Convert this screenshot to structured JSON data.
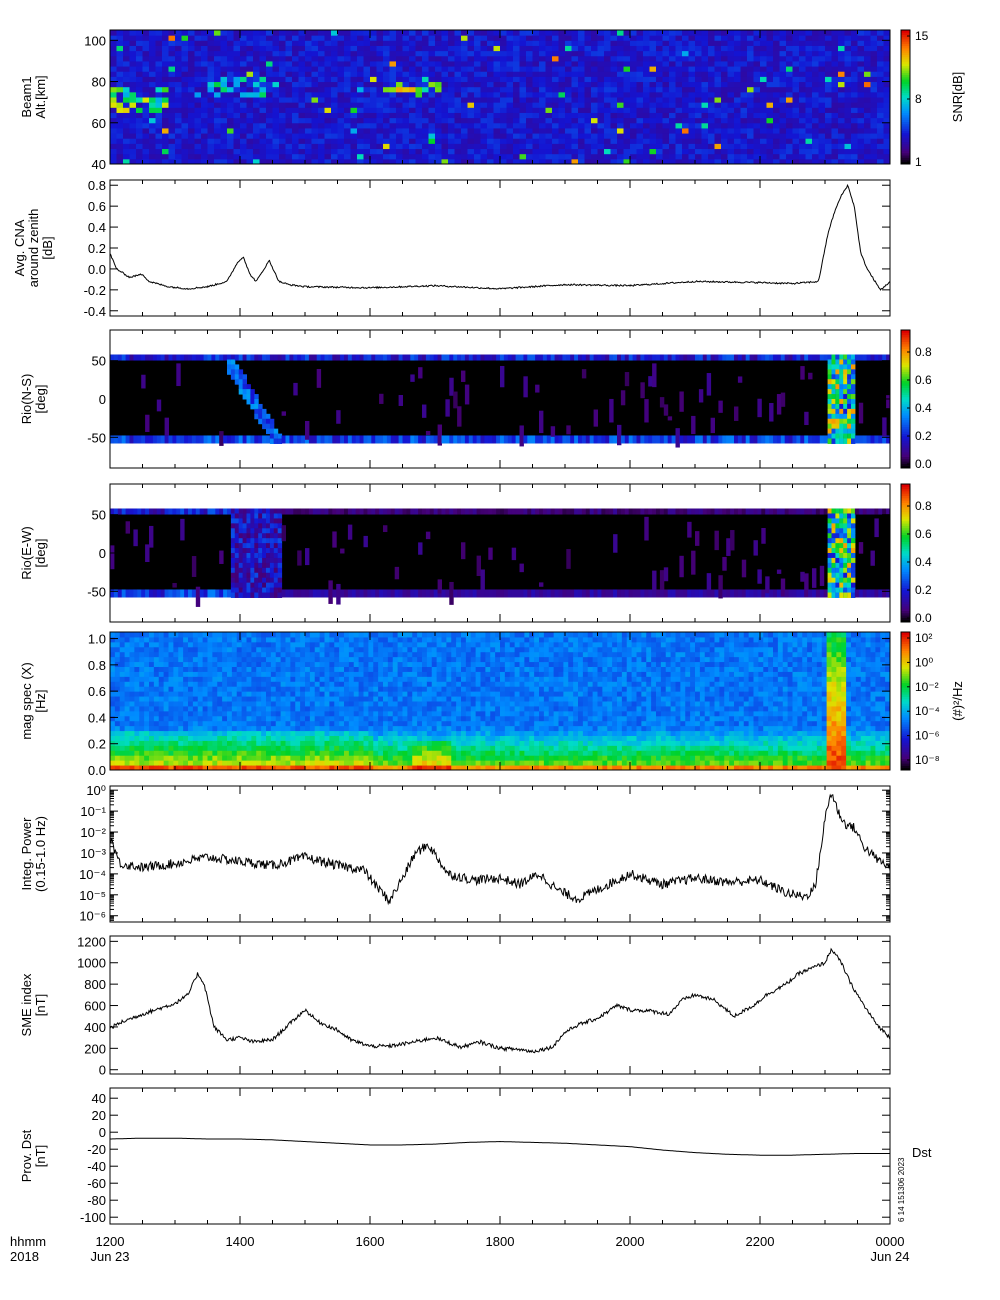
{
  "time_axis": {
    "header": [
      "hhmm",
      "2018"
    ],
    "ticks": [
      {
        "hours": 0,
        "label": "1200",
        "sub": "Jun 23"
      },
      {
        "hours": 2,
        "label": "1400",
        "sub": ""
      },
      {
        "hours": 4,
        "label": "1600",
        "sub": ""
      },
      {
        "hours": 6,
        "label": "1800",
        "sub": ""
      },
      {
        "hours": 8,
        "label": "2000",
        "sub": ""
      },
      {
        "hours": 10,
        "label": "2200",
        "sub": ""
      },
      {
        "hours": 12,
        "label": "0000",
        "sub": "Jun 24"
      }
    ]
  },
  "side_text": {
    "dst_label": "Dst",
    "stamp": "6 14 151306 2023"
  },
  "chart_data": [
    {
      "id": "beam1",
      "type": "heatmap",
      "ylabel": [
        "Beam1",
        "Alt.[km]"
      ],
      "yticks": [
        40,
        60,
        80,
        100
      ],
      "ylim": [
        40,
        105
      ],
      "colorbar": {
        "label": "SNR[dB]",
        "ticks": [
          "15",
          "8",
          "1"
        ],
        "range": [
          1,
          15
        ]
      },
      "features": [
        {
          "t": [
            0.0,
            0.8
          ],
          "alt": [
            66,
            78
          ],
          "snr": 11
        },
        {
          "t": [
            1.45,
            2.35
          ],
          "alt": [
            72,
            82
          ],
          "snr": 10
        },
        {
          "t": [
            4.15,
            5.05
          ],
          "alt": [
            75,
            79
          ],
          "snr": 12
        },
        {
          "t": [
            11.1,
            11.75
          ],
          "alt": [
            77,
            81
          ],
          "snr": 13
        }
      ]
    },
    {
      "id": "cna",
      "type": "line",
      "ylabel": [
        "Avg. CNA",
        "around zenith",
        "[dB]"
      ],
      "yticks": [
        "0.8",
        "0.6",
        "0.4",
        "0.2",
        "0.0",
        "-0.2",
        "-0.4"
      ],
      "yticks_num": [
        0.8,
        0.6,
        0.4,
        0.2,
        0.0,
        -0.2,
        -0.4
      ],
      "ylim": [
        -0.45,
        0.85
      ],
      "x": [
        0,
        0.1,
        0.3,
        0.5,
        0.6,
        0.9,
        1.2,
        1.5,
        1.8,
        1.95,
        2.05,
        2.15,
        2.25,
        2.45,
        2.6,
        2.75,
        3,
        4,
        5,
        6,
        7,
        8,
        9,
        10,
        10.5,
        10.9,
        11.05,
        11.15,
        11.25,
        11.35,
        11.45,
        11.55,
        11.65,
        11.75,
        11.85,
        11.95,
        12
      ],
      "y": [
        0.15,
        0.0,
        -0.08,
        -0.05,
        -0.12,
        -0.17,
        -0.19,
        -0.17,
        -0.12,
        0.05,
        0.12,
        -0.05,
        -0.12,
        0.08,
        -0.12,
        -0.15,
        -0.17,
        -0.18,
        -0.16,
        -0.19,
        -0.15,
        -0.16,
        -0.12,
        -0.13,
        -0.14,
        -0.12,
        0.35,
        0.55,
        0.7,
        0.8,
        0.6,
        0.15,
        0.0,
        -0.1,
        -0.2,
        -0.15,
        -0.12
      ]
    },
    {
      "id": "rio_ns",
      "type": "heatmap",
      "ylabel": [
        "Rio(N-S)",
        "[deg]"
      ],
      "yticks": [
        "50",
        "0",
        "-50"
      ],
      "yticks_num": [
        50,
        0,
        -50
      ],
      "ylim": [
        -90,
        90
      ],
      "colorbar": {
        "ticks": [
          "0.8",
          "0.6",
          "0.4",
          "0.2",
          "0.0"
        ],
        "range": [
          0,
          0.9
        ]
      },
      "features": [
        {
          "t": [
            11.0,
            11.45
          ],
          "value": 0.85
        },
        {
          "t": [
            1.75,
            2.6
          ],
          "value": 0.35,
          "diagonal": true
        }
      ]
    },
    {
      "id": "rio_ew",
      "type": "heatmap",
      "ylabel": [
        "Rio(E-W)",
        "[deg]"
      ],
      "yticks": [
        "50",
        "0",
        "-50"
      ],
      "yticks_num": [
        50,
        0,
        -50
      ],
      "ylim": [
        -90,
        90
      ],
      "colorbar": {
        "ticks": [
          "0.8",
          "0.6",
          "0.4",
          "0.2",
          "0.0"
        ],
        "range": [
          0,
          0.9
        ]
      },
      "features": [
        {
          "t": [
            11.0,
            11.45
          ],
          "value": 0.85
        },
        {
          "t": [
            1.8,
            2.6
          ],
          "value": 0.3
        }
      ]
    },
    {
      "id": "mag_spec",
      "type": "heatmap",
      "ylabel": [
        "mag spec (X)",
        "[Hz]"
      ],
      "yticks": [
        "1.0",
        "0.8",
        "0.6",
        "0.4",
        "0.2",
        "0.0"
      ],
      "yticks_num": [
        1.0,
        0.8,
        0.6,
        0.4,
        0.2,
        0.0
      ],
      "ylim": [
        0,
        1.05
      ],
      "colorbar": {
        "label": "(#)²/Hz",
        "ticks": [
          "10²",
          "10⁰",
          "10⁻²",
          "10⁻⁴",
          "10⁻⁶",
          "10⁻⁸"
        ]
      },
      "features": [
        {
          "t": [
            11.0,
            11.25
          ],
          "freq": [
            0,
            1.0
          ],
          "level": "high"
        }
      ]
    },
    {
      "id": "integ_power",
      "type": "line",
      "ylabel": [
        "Integ. Power",
        "(0.15-1.0 Hz)"
      ],
      "yscale": "log",
      "yticks": [
        "10⁰",
        "10⁻¹",
        "10⁻²",
        "10⁻³",
        "10⁻⁴",
        "10⁻⁵",
        "10⁻⁶"
      ],
      "yticks_exp": [
        0,
        -1,
        -2,
        -3,
        -4,
        -5,
        -6
      ],
      "ylim_exp": [
        -6.3,
        0.2
      ],
      "x": [
        0,
        0.15,
        0.5,
        1,
        1.5,
        2,
        2.5,
        3,
        3.5,
        3.9,
        4.1,
        4.3,
        4.5,
        4.7,
        4.9,
        5.2,
        5.6,
        6,
        6.3,
        6.6,
        6.9,
        7.2,
        7.6,
        8,
        8.5,
        9,
        9.5,
        10,
        10.4,
        10.7,
        10.85,
        10.95,
        11.02,
        11.1,
        11.2,
        11.3,
        11.45,
        11.6,
        11.8,
        12
      ],
      "y_exp": [
        -2.2,
        -3.5,
        -3.7,
        -3.5,
        -3.2,
        -3.4,
        -3.6,
        -3.2,
        -3.6,
        -3.8,
        -4.6,
        -5.3,
        -4.2,
        -3.0,
        -2.6,
        -4.0,
        -4.3,
        -4.2,
        -4.5,
        -4.0,
        -4.8,
        -5.2,
        -4.6,
        -4.0,
        -4.5,
        -4.2,
        -4.4,
        -4.3,
        -4.9,
        -5.1,
        -4.6,
        -2.5,
        -1.0,
        -0.1,
        -1.0,
        -1.6,
        -1.8,
        -2.7,
        -3.3,
        -3.7
      ]
    },
    {
      "id": "sme",
      "type": "line",
      "ylabel": [
        "SME index",
        "[nT]"
      ],
      "yticks": [
        "1200",
        "1000",
        "800",
        "600",
        "400",
        "200",
        "0"
      ],
      "yticks_num": [
        1200,
        1000,
        800,
        600,
        400,
        200,
        0
      ],
      "ylim": [
        -40,
        1250
      ],
      "x": [
        0,
        0.2,
        0.5,
        0.8,
        1.0,
        1.2,
        1.35,
        1.45,
        1.6,
        1.8,
        2.0,
        2.2,
        2.5,
        2.8,
        3.0,
        3.2,
        3.5,
        3.7,
        4.0,
        4.3,
        4.6,
        5.0,
        5.4,
        5.7,
        6.0,
        6.3,
        6.5,
        6.8,
        7.0,
        7.2,
        7.5,
        7.8,
        8.0,
        8.3,
        8.6,
        8.8,
        9.0,
        9.3,
        9.6,
        9.9,
        10.1,
        10.4,
        10.6,
        10.8,
        11.0,
        11.1,
        11.25,
        11.4,
        11.6,
        11.8,
        12.0
      ],
      "y": [
        390,
        450,
        520,
        580,
        620,
        700,
        900,
        800,
        400,
        280,
        300,
        260,
        280,
        450,
        560,
        450,
        370,
        280,
        220,
        220,
        250,
        300,
        210,
        260,
        200,
        190,
        170,
        210,
        350,
        420,
        480,
        600,
        560,
        550,
        520,
        650,
        700,
        650,
        500,
        600,
        700,
        800,
        900,
        950,
        1000,
        1130,
        1000,
        800,
        600,
        420,
        300
      ]
    },
    {
      "id": "dst",
      "type": "line",
      "ylabel": [
        "Prov. Dst",
        "[nT]"
      ],
      "yticks": [
        "40",
        "20",
        "0",
        "-20",
        "-40",
        "-60",
        "-80",
        "-100"
      ],
      "yticks_num": [
        40,
        20,
        0,
        -20,
        -40,
        -60,
        -80,
        -100
      ],
      "ylim": [
        -108,
        52
      ],
      "x": [
        0,
        0.5,
        1,
        1.5,
        2,
        2.5,
        3,
        3.5,
        4,
        4.5,
        5,
        5.5,
        6,
        6.5,
        7,
        7.5,
        8,
        8.5,
        9,
        9.5,
        10,
        10.5,
        11,
        11.5,
        12
      ],
      "y": [
        -8,
        -7,
        -7,
        -8,
        -8,
        -9,
        -11,
        -13,
        -15,
        -15,
        -14,
        -12,
        -11,
        -12,
        -13,
        -15,
        -17,
        -21,
        -24,
        -26,
        -27,
        -27,
        -26,
        -25,
        -25
      ]
    }
  ]
}
